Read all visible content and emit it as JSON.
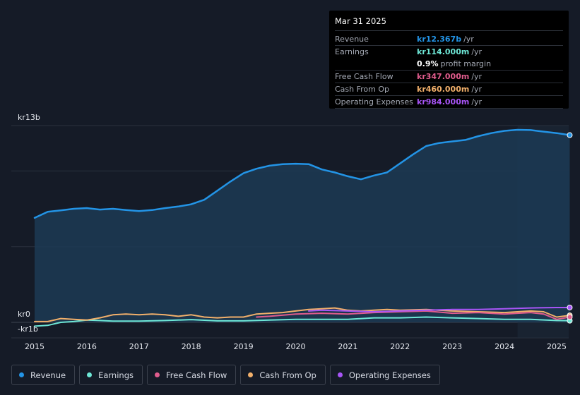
{
  "tooltip": {
    "date": "Mar 31 2025",
    "rows": [
      {
        "label": "Revenue",
        "value": "kr12.367b",
        "unit": "/yr",
        "color": "#2394e6"
      },
      {
        "label": "Earnings",
        "value": "kr114.000m",
        "unit": "/yr",
        "color": "#6ee7d6"
      },
      {
        "label": "",
        "value": "0.9%",
        "unit": "profit margin",
        "color": "#ffffff"
      },
      {
        "label": "Free Cash Flow",
        "value": "kr347.000m",
        "unit": "/yr",
        "color": "#e05c8d"
      },
      {
        "label": "Cash From Op",
        "value": "kr460.000m",
        "unit": "/yr",
        "color": "#f2b06b"
      },
      {
        "label": "Operating Expenses",
        "value": "kr984.000m",
        "unit": "/yr",
        "color": "#a855f7"
      }
    ]
  },
  "legend": [
    {
      "label": "Revenue",
      "color": "#2394e6"
    },
    {
      "label": "Earnings",
      "color": "#6ee7d6"
    },
    {
      "label": "Free Cash Flow",
      "color": "#e05c8d"
    },
    {
      "label": "Cash From Op",
      "color": "#f2b06b"
    },
    {
      "label": "Operating Expenses",
      "color": "#a855f7"
    }
  ],
  "chart_data": {
    "type": "area",
    "y_axis_labels": [
      "kr13b",
      "kr0",
      "-kr1b"
    ],
    "ylim": [
      -1,
      13
    ],
    "x_tick_labels": [
      "2015",
      "2016",
      "2017",
      "2018",
      "2019",
      "2020",
      "2021",
      "2022",
      "2023",
      "2024",
      "2025"
    ],
    "xlim": [
      2014.5,
      2025.25
    ],
    "grid": true,
    "forecast_shade_from": 2024.25,
    "series": [
      {
        "name": "Revenue",
        "color": "#2394e6",
        "fill": true,
        "x": [
          2015.0,
          2015.25,
          2015.5,
          2015.75,
          2016.0,
          2016.25,
          2016.5,
          2016.75,
          2017.0,
          2017.25,
          2017.5,
          2017.75,
          2018.0,
          2018.25,
          2018.5,
          2018.75,
          2019.0,
          2019.25,
          2019.5,
          2019.75,
          2020.0,
          2020.25,
          2020.5,
          2020.75,
          2021.0,
          2021.25,
          2021.5,
          2021.75,
          2022.0,
          2022.25,
          2022.5,
          2022.75,
          2023.0,
          2023.25,
          2023.5,
          2023.75,
          2024.0,
          2024.25,
          2024.5,
          2024.75,
          2025.0,
          2025.25
        ],
        "values": [
          6.9,
          7.3,
          7.4,
          7.5,
          7.55,
          7.45,
          7.5,
          7.42,
          7.35,
          7.42,
          7.55,
          7.65,
          7.8,
          8.1,
          8.7,
          9.3,
          9.85,
          10.15,
          10.35,
          10.45,
          10.48,
          10.45,
          10.1,
          9.9,
          9.65,
          9.45,
          9.7,
          9.9,
          10.5,
          11.1,
          11.65,
          11.85,
          11.95,
          12.05,
          12.3,
          12.5,
          12.65,
          12.72,
          12.7,
          12.6,
          12.5,
          12.37
        ]
      },
      {
        "name": "Earnings",
        "color": "#6ee7d6",
        "fill": false,
        "x": [
          2015.0,
          2015.25,
          2015.5,
          2015.75,
          2016.0,
          2016.25,
          2016.5,
          2016.75,
          2017.0,
          2017.5,
          2018.0,
          2018.5,
          2019.0,
          2019.5,
          2020.0,
          2020.5,
          2021.0,
          2021.5,
          2022.0,
          2022.5,
          2023.0,
          2023.5,
          2024.0,
          2024.5,
          2025.0,
          2025.25
        ],
        "values": [
          -0.25,
          -0.2,
          0.0,
          0.05,
          0.15,
          0.12,
          0.08,
          0.08,
          0.08,
          0.12,
          0.18,
          0.1,
          0.1,
          0.15,
          0.2,
          0.2,
          0.2,
          0.3,
          0.3,
          0.35,
          0.3,
          0.25,
          0.2,
          0.2,
          0.12,
          0.11
        ]
      },
      {
        "name": "Free Cash Flow",
        "color": "#e05c8d",
        "fill": false,
        "x": [
          2019.25,
          2019.5,
          2020.0,
          2020.5,
          2021.0,
          2021.5,
          2022.0,
          2022.5,
          2023.0,
          2023.5,
          2024.0,
          2024.25,
          2024.5,
          2024.75,
          2025.0,
          2025.25
        ],
        "values": [
          0.35,
          0.4,
          0.55,
          0.6,
          0.55,
          0.65,
          0.7,
          0.75,
          0.6,
          0.65,
          0.55,
          0.6,
          0.65,
          0.55,
          0.2,
          0.35
        ]
      },
      {
        "name": "Cash From Op",
        "color": "#f2b06b",
        "fill": false,
        "x": [
          2015.0,
          2015.25,
          2015.5,
          2015.75,
          2016.0,
          2016.25,
          2016.5,
          2016.75,
          2017.0,
          2017.25,
          2017.5,
          2017.75,
          2018.0,
          2018.25,
          2018.5,
          2018.75,
          2019.0,
          2019.25,
          2019.5,
          2019.75,
          2020.0,
          2020.25,
          2020.5,
          2020.75,
          2021.0,
          2021.25,
          2021.5,
          2021.75,
          2022.0,
          2022.5,
          2023.0,
          2023.5,
          2024.0,
          2024.25,
          2024.5,
          2024.75,
          2025.0,
          2025.25
        ],
        "values": [
          0.05,
          0.05,
          0.25,
          0.2,
          0.15,
          0.3,
          0.5,
          0.55,
          0.5,
          0.55,
          0.5,
          0.4,
          0.5,
          0.35,
          0.3,
          0.35,
          0.35,
          0.55,
          0.6,
          0.65,
          0.75,
          0.85,
          0.9,
          0.95,
          0.8,
          0.75,
          0.8,
          0.85,
          0.8,
          0.85,
          0.75,
          0.7,
          0.65,
          0.7,
          0.75,
          0.7,
          0.35,
          0.46
        ]
      },
      {
        "name": "Operating Expenses",
        "color": "#a855f7",
        "fill": false,
        "x": [
          2020.25,
          2020.5,
          2021.0,
          2021.5,
          2022.0,
          2022.5,
          2023.0,
          2023.5,
          2024.0,
          2024.5,
          2025.0,
          2025.25
        ],
        "values": [
          0.75,
          0.8,
          0.75,
          0.7,
          0.75,
          0.8,
          0.85,
          0.85,
          0.9,
          0.95,
          0.98,
          0.98
        ]
      }
    ]
  }
}
